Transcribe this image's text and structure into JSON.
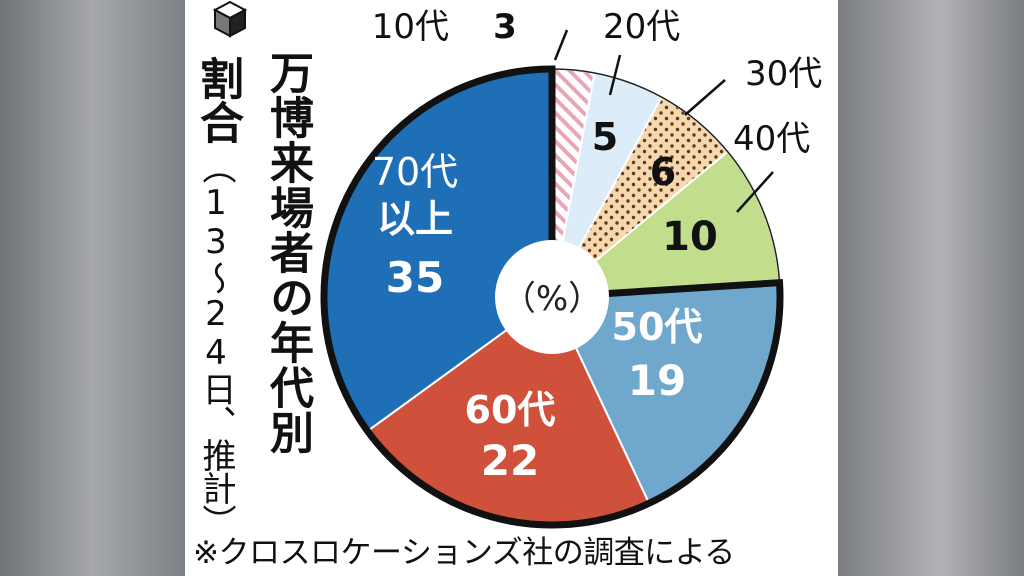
{
  "chart_data": {
    "type": "pie",
    "title": "万博来場者の年代別割合",
    "subtitle": "（13～24日、推計）",
    "center_label": "（%）",
    "footnote": "※クロスロケーションズ社の調査による",
    "slices": [
      {
        "label": "10代",
        "value": 3,
        "color": "#f3c9d2",
        "pattern": "stripes"
      },
      {
        "label": "20代",
        "value": 5,
        "color": "#dcedf9",
        "pattern": "none"
      },
      {
        "label": "30代",
        "value": 6,
        "color": "#f6d7ae",
        "pattern": "dots"
      },
      {
        "label": "40代",
        "value": 10,
        "color": "#c2de8c",
        "pattern": "none"
      },
      {
        "label": "50代",
        "value": 19,
        "color": "#6fa8cc",
        "pattern": "none"
      },
      {
        "label": "60代",
        "value": 22,
        "color": "#cf513b",
        "pattern": "none"
      },
      {
        "label": "70代以上",
        "value": 35,
        "color": "#1e6fb6",
        "pattern": "none"
      }
    ],
    "highlighted": [
      "50代",
      "60代",
      "70代以上"
    ]
  }
}
